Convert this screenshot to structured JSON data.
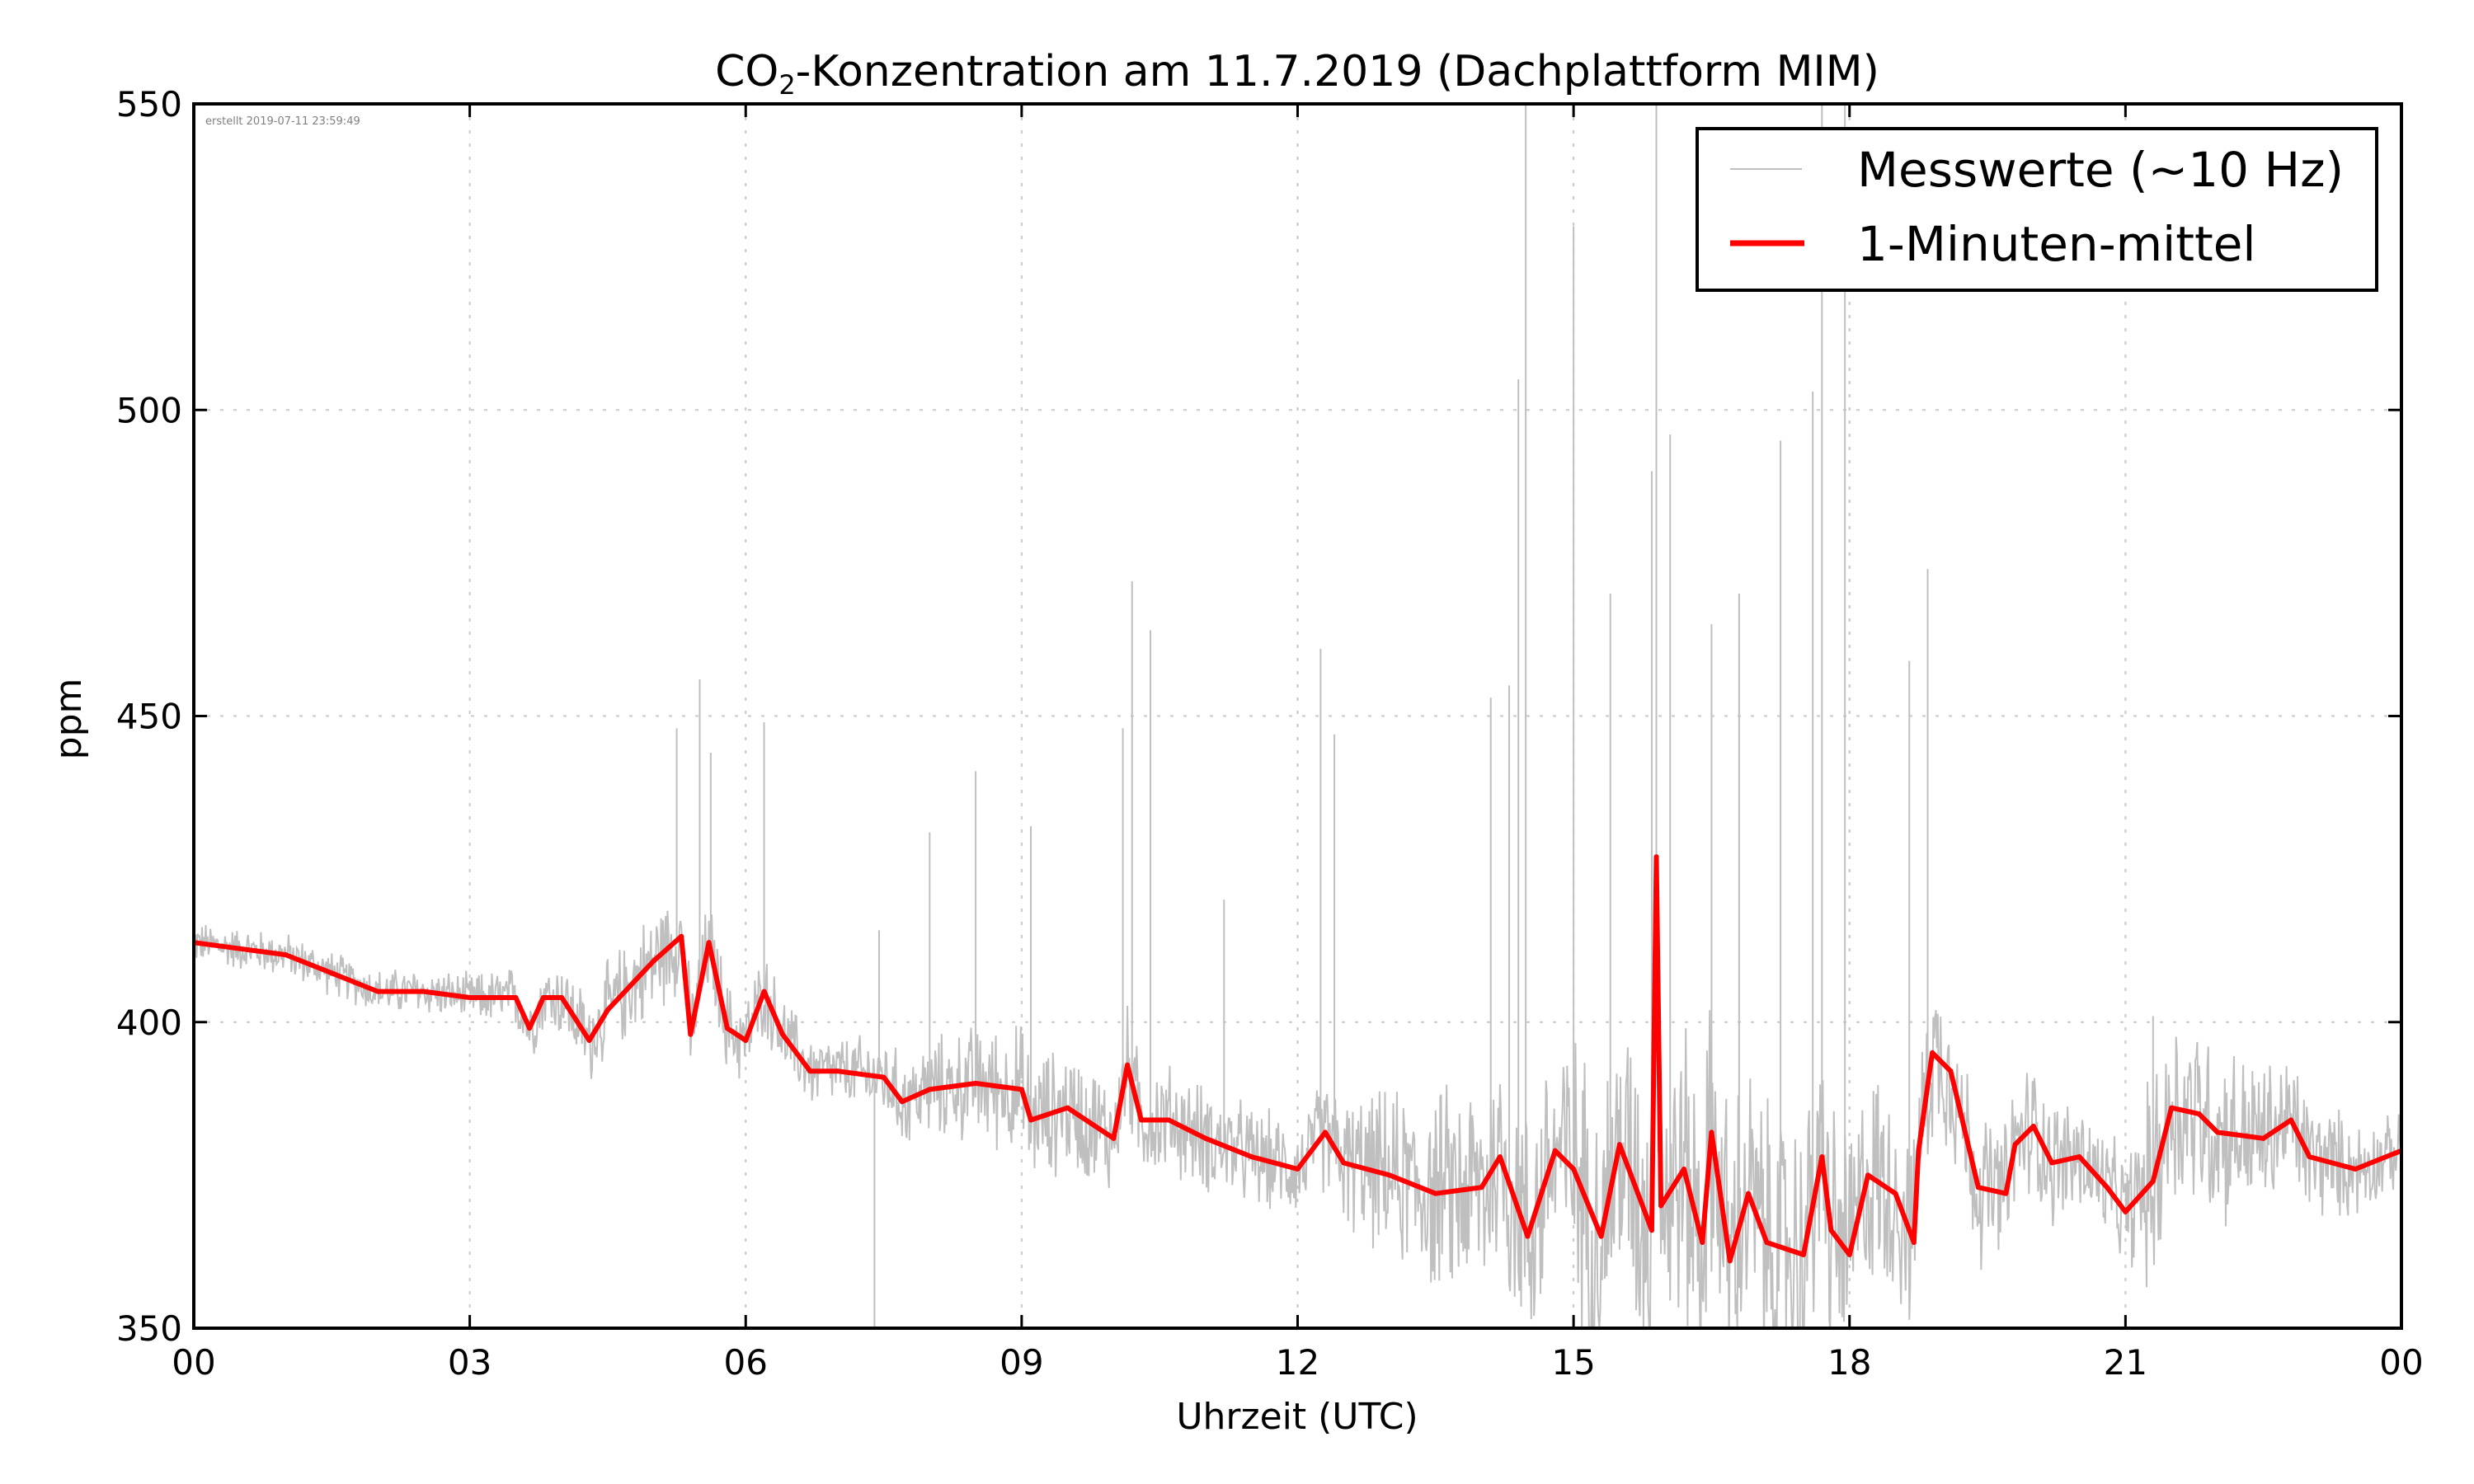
{
  "chart_data": {
    "type": "line",
    "title": "CO₂-Konzentration am 11.7.2019 (Dachplattform MIM)",
    "title_parts": {
      "prefix": "CO",
      "subscript": "2",
      "suffix": "-Konzentration am 11.7.2019 (Dachplattform MIM)"
    },
    "xlabel": "Uhrzeit (UTC)",
    "ylabel": "ppm",
    "xlim": [
      0,
      24
    ],
    "ylim": [
      350,
      550
    ],
    "grid": true,
    "legend_position": "top-right",
    "annotation": "erstellt 2019-07-11 23:59:49",
    "x_ticks": [
      {
        "value": 0,
        "label": "00"
      },
      {
        "value": 3,
        "label": "03"
      },
      {
        "value": 6,
        "label": "06"
      },
      {
        "value": 9,
        "label": "09"
      },
      {
        "value": 12,
        "label": "12"
      },
      {
        "value": 15,
        "label": "15"
      },
      {
        "value": 18,
        "label": "18"
      },
      {
        "value": 21,
        "label": "21"
      },
      {
        "value": 24,
        "label": "00"
      }
    ],
    "y_ticks": [
      {
        "value": 350,
        "label": "350"
      },
      {
        "value": 400,
        "label": "400"
      },
      {
        "value": 450,
        "label": "450"
      },
      {
        "value": 500,
        "label": "500"
      },
      {
        "value": 550,
        "label": "550"
      }
    ],
    "series": [
      {
        "name": "Messwerte (~10 Hz)",
        "color": "#bfbfbf",
        "description": "raw measurements (~10 Hz) with noise band and spikes",
        "noise_envelope": [
          {
            "x": 0,
            "low": 408,
            "high": 416
          },
          {
            "x": 3,
            "low": 400,
            "high": 409
          },
          {
            "x": 5,
            "low": 403,
            "high": 424
          },
          {
            "x": 7,
            "low": 387,
            "high": 400
          },
          {
            "x": 9,
            "low": 380,
            "high": 405
          },
          {
            "x": 12,
            "low": 372,
            "high": 390
          },
          {
            "x": 14,
            "low": 355,
            "high": 400
          },
          {
            "x": 16,
            "low": 350,
            "high": 410
          },
          {
            "x": 18,
            "low": 352,
            "high": 400
          },
          {
            "x": 19,
            "low": 368,
            "high": 400
          },
          {
            "x": 21,
            "low": 365,
            "high": 385
          },
          {
            "x": 21.3,
            "low": 355,
            "high": 398
          },
          {
            "x": 24,
            "low": 372,
            "high": 385
          }
        ],
        "spikes": [
          {
            "x": 5.25,
            "y": 448
          },
          {
            "x": 5.5,
            "y": 456
          },
          {
            "x": 5.62,
            "y": 444
          },
          {
            "x": 6.2,
            "y": 449
          },
          {
            "x": 7.4,
            "y": 350
          },
          {
            "x": 7.45,
            "y": 415
          },
          {
            "x": 8.0,
            "y": 431
          },
          {
            "x": 8.5,
            "y": 441
          },
          {
            "x": 9.1,
            "y": 432
          },
          {
            "x": 10.1,
            "y": 448
          },
          {
            "x": 10.2,
            "y": 472
          },
          {
            "x": 10.4,
            "y": 464
          },
          {
            "x": 11.2,
            "y": 420
          },
          {
            "x": 12.25,
            "y": 461
          },
          {
            "x": 12.4,
            "y": 447
          },
          {
            "x": 14.1,
            "y": 453
          },
          {
            "x": 14.3,
            "y": 455
          },
          {
            "x": 14.4,
            "y": 505
          },
          {
            "x": 14.48,
            "y": 550
          },
          {
            "x": 15.0,
            "y": 530
          },
          {
            "x": 15.4,
            "y": 470
          },
          {
            "x": 15.85,
            "y": 490
          },
          {
            "x": 15.9,
            "y": 550
          },
          {
            "x": 16.05,
            "y": 496
          },
          {
            "x": 16.5,
            "y": 465
          },
          {
            "x": 16.8,
            "y": 470
          },
          {
            "x": 17.25,
            "y": 495
          },
          {
            "x": 17.6,
            "y": 503
          },
          {
            "x": 17.7,
            "y": 550
          },
          {
            "x": 17.95,
            "y": 550
          },
          {
            "x": 18.65,
            "y": 459
          },
          {
            "x": 18.85,
            "y": 474
          },
          {
            "x": 21.3,
            "y": 401
          }
        ]
      },
      {
        "name": "1-Minuten-mittel",
        "color": "#ff0000",
        "x": [
          0,
          0.5,
          1,
          1.5,
          2,
          2.5,
          3,
          3.5,
          3.65,
          3.8,
          4,
          4.3,
          4.5,
          5,
          5.3,
          5.4,
          5.6,
          5.8,
          6,
          6.2,
          6.4,
          6.7,
          7,
          7.5,
          7.7,
          8,
          8.5,
          9,
          9.1,
          9.5,
          10,
          10.15,
          10.3,
          10.6,
          11,
          11.5,
          12,
          12.3,
          12.5,
          13,
          13.5,
          14,
          14.2,
          14.5,
          14.8,
          15,
          15.3,
          15.5,
          15.7,
          15.85,
          15.9,
          15.95,
          16.2,
          16.4,
          16.5,
          16.7,
          16.9,
          17.1,
          17.5,
          17.7,
          17.8,
          18,
          18.2,
          18.5,
          18.7,
          18.75,
          18.9,
          19.1,
          19.4,
          19.7,
          19.8,
          20,
          20.2,
          20.5,
          20.8,
          21,
          21.3,
          21.5,
          21.8,
          22,
          22.5,
          22.8,
          23,
          23.5,
          24
        ],
        "y": [
          413,
          412,
          411,
          408,
          405,
          405,
          404,
          404,
          399,
          404,
          404,
          397,
          402,
          410,
          414,
          398,
          413,
          399,
          397,
          405,
          398,
          392,
          392,
          391,
          387,
          389,
          390,
          389,
          384,
          386,
          381,
          393,
          384,
          384,
          381,
          378,
          376,
          382,
          377,
          375,
          372,
          373,
          378,
          365,
          379,
          376,
          365,
          380,
          372,
          366,
          427,
          370,
          376,
          364,
          382,
          361,
          372,
          364,
          362,
          378,
          366,
          362,
          375,
          372,
          364,
          379,
          395,
          392,
          373,
          372,
          380,
          383,
          377,
          378,
          373,
          369,
          374,
          386,
          385,
          382,
          381,
          384,
          378,
          376,
          379
        ]
      }
    ]
  }
}
